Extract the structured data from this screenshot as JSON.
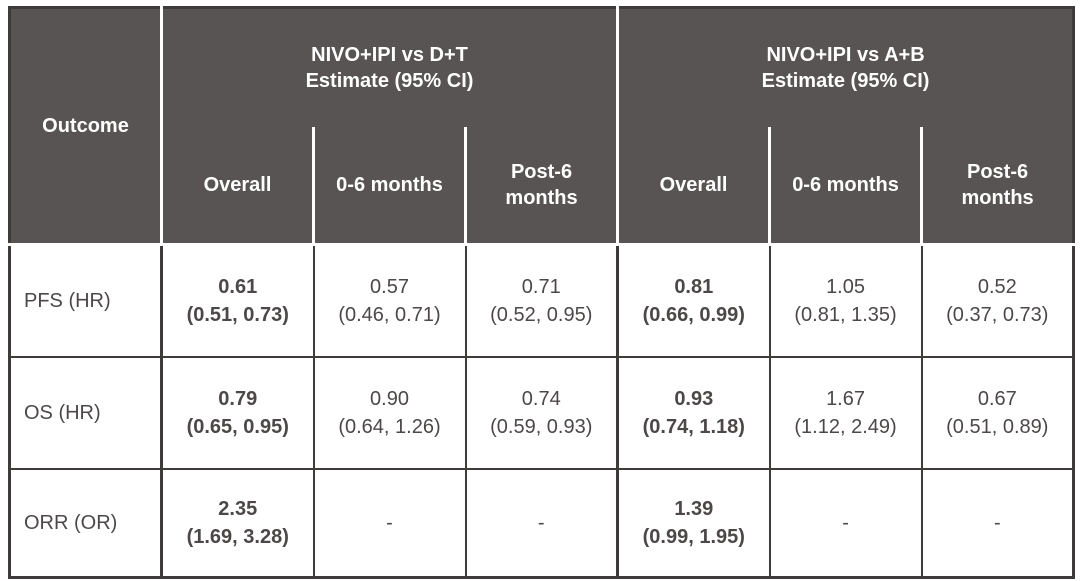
{
  "colors": {
    "header_bg": "#595454",
    "header_text": "#ffffff",
    "body_text": "#4d4848",
    "border_dark": "#3f3b3b",
    "divider_white": "#ffffff"
  },
  "table": {
    "outcome_header": "Outcome",
    "groups": [
      {
        "title_line1": "NIVO+IPI vs D+T",
        "title_line2": "Estimate (95% CI)",
        "subheaders": [
          "Overall",
          "0-6 months",
          "Post-6 months"
        ]
      },
      {
        "title_line1": "NIVO+IPI vs A+B",
        "title_line2": "Estimate (95% CI)",
        "subheaders": [
          "Overall",
          "0-6 months",
          "Post-6 months"
        ]
      }
    ],
    "rows": [
      {
        "outcome": "PFS (HR)",
        "cells": [
          {
            "estimate": "0.61",
            "ci": "(0.51, 0.73)"
          },
          {
            "estimate": "0.57",
            "ci": "(0.46, 0.71)"
          },
          {
            "estimate": "0.71",
            "ci": "(0.52, 0.95)"
          },
          {
            "estimate": "0.81",
            "ci": "(0.66, 0.99)"
          },
          {
            "estimate": "1.05",
            "ci": "(0.81, 1.35)"
          },
          {
            "estimate": "0.52",
            "ci": "(0.37, 0.73)"
          }
        ]
      },
      {
        "outcome": "OS (HR)",
        "cells": [
          {
            "estimate": "0.79",
            "ci": "(0.65, 0.95)"
          },
          {
            "estimate": "0.90",
            "ci": "(0.64, 1.26)"
          },
          {
            "estimate": "0.74",
            "ci": "(0.59, 0.93)"
          },
          {
            "estimate": "0.93",
            "ci": "(0.74, 1.18)"
          },
          {
            "estimate": "1.67",
            "ci": "(1.12, 2.49)"
          },
          {
            "estimate": "0.67",
            "ci": "(0.51, 0.89)"
          }
        ]
      },
      {
        "outcome": "ORR (OR)",
        "cells": [
          {
            "estimate": "2.35",
            "ci": "(1.69, 3.28)"
          },
          {
            "estimate": "-",
            "ci": ""
          },
          {
            "estimate": "-",
            "ci": ""
          },
          {
            "estimate": "1.39",
            "ci": "(0.99, 1.95)"
          },
          {
            "estimate": "-",
            "ci": ""
          },
          {
            "estimate": "-",
            "ci": ""
          }
        ]
      }
    ]
  },
  "chart_data": {
    "type": "table",
    "column_groups": [
      "NIVO+IPI vs D+T Estimate (95% CI)",
      "NIVO+IPI vs A+B Estimate (95% CI)"
    ],
    "columns": [
      "Outcome",
      "NIVO+IPI vs D+T Overall",
      "NIVO+IPI vs D+T 0-6 months",
      "NIVO+IPI vs D+T Post-6 months",
      "NIVO+IPI vs A+B Overall",
      "NIVO+IPI vs A+B 0-6 months",
      "NIVO+IPI vs A+B Post-6 months"
    ],
    "rows": [
      [
        "PFS (HR)",
        "0.61 (0.51, 0.73)",
        "0.57 (0.46, 0.71)",
        "0.71 (0.52, 0.95)",
        "0.81 (0.66, 0.99)",
        "1.05 (0.81, 1.35)",
        "0.52 (0.37, 0.73)"
      ],
      [
        "OS (HR)",
        "0.79 (0.65, 0.95)",
        "0.90 (0.64, 1.26)",
        "0.74 (0.59, 0.93)",
        "0.93 (0.74, 1.18)",
        "1.67 (1.12, 2.49)",
        "0.67 (0.51, 0.89)"
      ],
      [
        "ORR (OR)",
        "2.35 (1.69, 3.28)",
        "-",
        "-",
        "1.39 (0.99, 1.95)",
        "-",
        "-"
      ]
    ]
  }
}
